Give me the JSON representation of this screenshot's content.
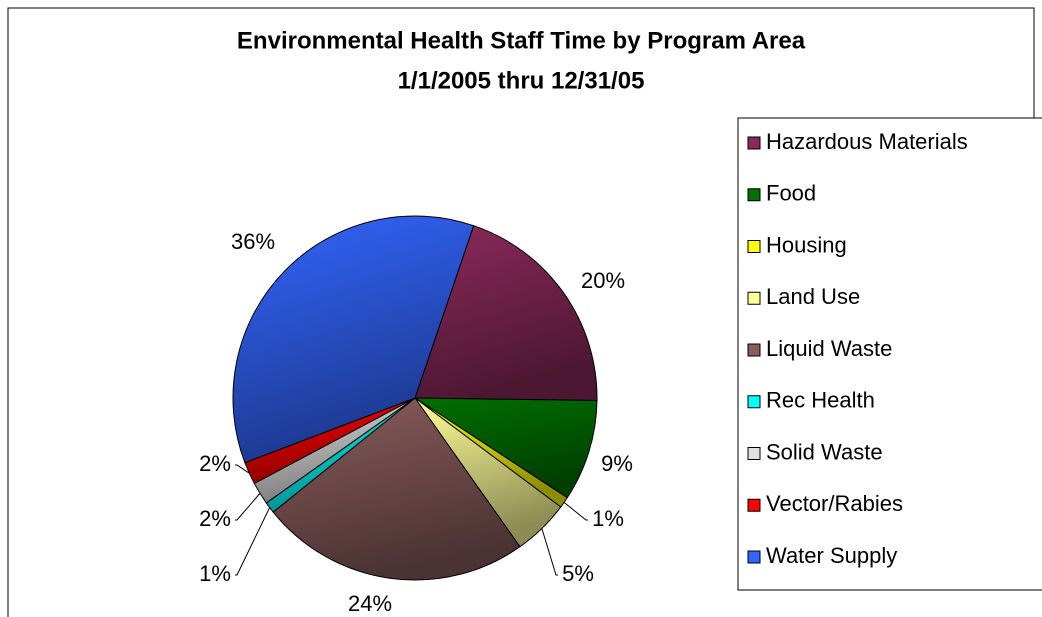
{
  "chart_data": {
    "type": "pie",
    "title": "Environmental Health Staff Time by Program Area",
    "subtitle": "1/1/2005 thru 12/31/05",
    "categories": [
      "Hazardous Materials",
      "Food",
      "Housing",
      "Land Use",
      "Liquid Waste",
      "Rec Health",
      "Solid Waste",
      "Vector/Rabies",
      "Water Supply"
    ],
    "values": [
      20,
      9,
      1,
      5,
      24,
      1,
      2,
      2,
      36
    ],
    "value_labels": [
      "20%",
      "9%",
      "1%",
      "5%",
      "24%",
      "1%",
      "2%",
      "2%",
      "36%"
    ],
    "colors": [
      "#8b2a5a",
      "#007000",
      "#ffff00",
      "#ffff99",
      "#8a5c5c",
      "#00ffff",
      "#e0e0e0",
      "#ff0000",
      "#3366ff"
    ],
    "legend": "right"
  }
}
